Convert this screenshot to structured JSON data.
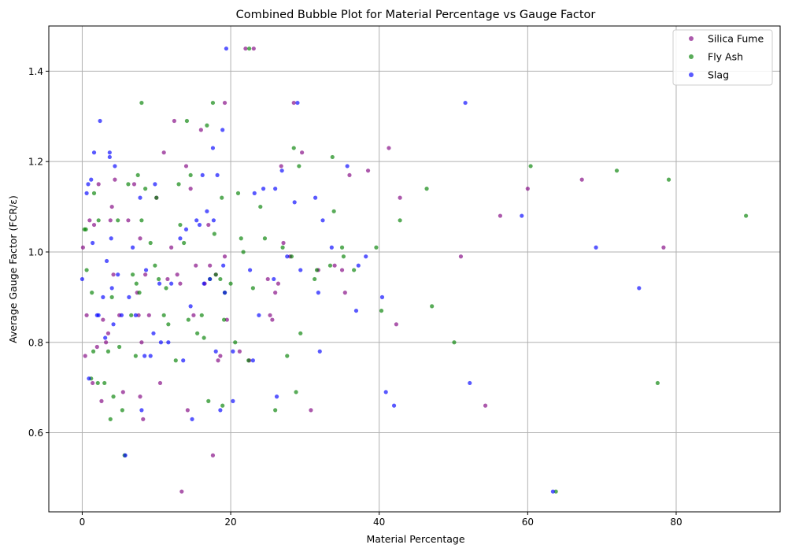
{
  "chart_data": {
    "type": "scatter",
    "title": "Combined Bubble Plot for Material Percentage vs Gauge Factor",
    "xlabel": "Material Percentage",
    "ylabel": "Average Gauge Factor (FCR/ε)",
    "xlim": [
      -4.5,
      94
    ],
    "ylim": [
      0.425,
      1.5
    ],
    "xticks": [
      0,
      20,
      40,
      60,
      80
    ],
    "yticks": [
      0.6,
      0.8,
      1.0,
      1.2,
      1.4
    ],
    "xtick_labels": [
      "0",
      "20",
      "40",
      "60",
      "80"
    ],
    "ytick_labels": [
      "0.6",
      "0.8",
      "1.0",
      "1.2",
      "1.4"
    ],
    "grid": true,
    "legend_position": "top-right",
    "series": [
      {
        "name": "Silica Fume",
        "color": "#800080",
        "points": [
          [
            0.1,
            1.01
          ],
          [
            0.4,
            0.77
          ],
          [
            0.6,
            0.86
          ],
          [
            1.0,
            1.07
          ],
          [
            1.4,
            0.71
          ],
          [
            1.6,
            1.06
          ],
          [
            2.0,
            0.79
          ],
          [
            2.2,
            1.15
          ],
          [
            2.6,
            0.67
          ],
          [
            2.8,
            0.85
          ],
          [
            3.2,
            0.8
          ],
          [
            3.5,
            0.82
          ],
          [
            3.8,
            1.07
          ],
          [
            4.0,
            1.1
          ],
          [
            4.2,
            0.95
          ],
          [
            4.4,
            1.16
          ],
          [
            5.0,
            0.86
          ],
          [
            5.5,
            0.69
          ],
          [
            6.2,
            1.07
          ],
          [
            7.0,
            1.15
          ],
          [
            7.4,
            0.91
          ],
          [
            7.6,
            0.86
          ],
          [
            7.8,
            1.03
          ],
          [
            7.8,
            0.68
          ],
          [
            8.0,
            0.8
          ],
          [
            8.2,
            0.63
          ],
          [
            8.5,
            0.95
          ],
          [
            9.0,
            0.86
          ],
          [
            10.0,
            1.12
          ],
          [
            10.5,
            0.71
          ],
          [
            11.0,
            1.22
          ],
          [
            11.5,
            0.94
          ],
          [
            12.0,
            1.01
          ],
          [
            12.4,
            1.29
          ],
          [
            12.8,
            0.95
          ],
          [
            13.2,
            0.93
          ],
          [
            13.4,
            0.47
          ],
          [
            14.0,
            1.19
          ],
          [
            14.2,
            0.65
          ],
          [
            14.6,
            1.14
          ],
          [
            15.0,
            0.86
          ],
          [
            15.3,
            0.97
          ],
          [
            16.0,
            1.27
          ],
          [
            16.5,
            0.93
          ],
          [
            17.0,
            1.06
          ],
          [
            17.2,
            0.97
          ],
          [
            17.6,
            0.55
          ],
          [
            18.0,
            0.95
          ],
          [
            18.3,
            0.76
          ],
          [
            18.6,
            0.77
          ],
          [
            19.2,
            0.99
          ],
          [
            19.2,
            1.33
          ],
          [
            19.5,
            0.85
          ],
          [
            21.2,
            0.78
          ],
          [
            22.0,
            1.45
          ],
          [
            22.5,
            0.76
          ],
          [
            23.1,
            1.45
          ],
          [
            25.0,
            0.94
          ],
          [
            25.3,
            0.86
          ],
          [
            25.6,
            0.85
          ],
          [
            26.0,
            0.91
          ],
          [
            26.4,
            0.93
          ],
          [
            26.8,
            1.19
          ],
          [
            27.1,
            1.02
          ],
          [
            28.0,
            0.99
          ],
          [
            28.5,
            1.33
          ],
          [
            29.6,
            1.22
          ],
          [
            30.8,
            0.65
          ],
          [
            31.8,
            0.96
          ],
          [
            34.0,
            0.97
          ],
          [
            35.0,
            0.96
          ],
          [
            35.4,
            0.91
          ],
          [
            36.0,
            1.17
          ],
          [
            38.5,
            1.18
          ],
          [
            41.3,
            1.23
          ],
          [
            42.3,
            0.84
          ],
          [
            42.8,
            1.12
          ],
          [
            51.0,
            0.99
          ],
          [
            54.3,
            0.66
          ],
          [
            56.3,
            1.08
          ],
          [
            60.0,
            1.14
          ],
          [
            67.3,
            1.16
          ],
          [
            78.3,
            1.01
          ]
        ]
      },
      {
        "name": "Fly Ash",
        "color": "#008000",
        "points": [
          [
            0.3,
            1.05
          ],
          [
            0.5,
            1.05
          ],
          [
            0.6,
            0.96
          ],
          [
            1.2,
            0.72
          ],
          [
            1.3,
            0.91
          ],
          [
            1.5,
            0.78
          ],
          [
            1.6,
            1.13
          ],
          [
            2.1,
            0.71
          ],
          [
            2.2,
            1.07
          ],
          [
            3.0,
            0.71
          ],
          [
            3.5,
            0.78
          ],
          [
            3.8,
            0.63
          ],
          [
            4.0,
            0.9
          ],
          [
            4.2,
            0.68
          ],
          [
            4.8,
            1.07
          ],
          [
            5.0,
            0.79
          ],
          [
            5.4,
            0.65
          ],
          [
            5.7,
            0.55
          ],
          [
            6.2,
            1.15
          ],
          [
            6.6,
            0.86
          ],
          [
            6.8,
            0.95
          ],
          [
            7.2,
            0.77
          ],
          [
            7.3,
            0.93
          ],
          [
            7.5,
            1.17
          ],
          [
            7.7,
            0.91
          ],
          [
            8.0,
            1.33
          ],
          [
            8.0,
            1.07
          ],
          [
            8.5,
            1.14
          ],
          [
            9.2,
            1.02
          ],
          [
            9.8,
            0.97
          ],
          [
            10.0,
            1.12
          ],
          [
            10.3,
            0.94
          ],
          [
            11.0,
            0.86
          ],
          [
            11.3,
            0.92
          ],
          [
            11.6,
            0.84
          ],
          [
            12.6,
            0.76
          ],
          [
            13.0,
            1.15
          ],
          [
            13.2,
            1.06
          ],
          [
            13.7,
            1.02
          ],
          [
            14.1,
            1.29
          ],
          [
            14.3,
            0.85
          ],
          [
            14.6,
            1.17
          ],
          [
            15.5,
            0.82
          ],
          [
            16.1,
            0.86
          ],
          [
            16.4,
            0.81
          ],
          [
            16.8,
            1.28
          ],
          [
            17.0,
            0.67
          ],
          [
            17.2,
            0.94
          ],
          [
            17.6,
            1.33
          ],
          [
            17.8,
            1.04
          ],
          [
            18.0,
            0.95
          ],
          [
            18.6,
            0.94
          ],
          [
            18.8,
            1.12
          ],
          [
            18.9,
            0.66
          ],
          [
            19.1,
            0.85
          ],
          [
            19.2,
            0.91
          ],
          [
            20.0,
            0.93
          ],
          [
            20.6,
            0.8
          ],
          [
            21.0,
            1.13
          ],
          [
            21.4,
            1.03
          ],
          [
            21.7,
            1.0
          ],
          [
            22.4,
            0.76
          ],
          [
            22.5,
            1.45
          ],
          [
            23.0,
            0.92
          ],
          [
            24.0,
            1.1
          ],
          [
            24.6,
            1.03
          ],
          [
            26.0,
            0.65
          ],
          [
            27.0,
            1.01
          ],
          [
            27.6,
            0.77
          ],
          [
            28.2,
            0.99
          ],
          [
            28.5,
            1.23
          ],
          [
            28.8,
            0.69
          ],
          [
            29.2,
            1.19
          ],
          [
            29.4,
            0.82
          ],
          [
            31.3,
            0.94
          ],
          [
            31.6,
            0.96
          ],
          [
            33.4,
            0.97
          ],
          [
            33.7,
            1.21
          ],
          [
            33.9,
            1.09
          ],
          [
            35.0,
            1.01
          ],
          [
            35.2,
            0.99
          ],
          [
            36.6,
            0.96
          ],
          [
            39.6,
            1.01
          ],
          [
            40.3,
            0.87
          ],
          [
            42.8,
            1.07
          ],
          [
            46.4,
            1.14
          ],
          [
            47.1,
            0.88
          ],
          [
            50.1,
            0.8
          ],
          [
            60.4,
            1.19
          ],
          [
            63.8,
            0.47
          ],
          [
            72.0,
            1.18
          ],
          [
            77.5,
            0.71
          ],
          [
            79.0,
            1.16
          ],
          [
            89.4,
            1.08
          ]
        ]
      },
      {
        "name": "Slag",
        "color": "#0000ff",
        "points": [
          [
            0.0,
            0.94
          ],
          [
            0.6,
            1.13
          ],
          [
            0.8,
            1.15
          ],
          [
            0.9,
            0.72
          ],
          [
            1.2,
            1.16
          ],
          [
            1.4,
            1.02
          ],
          [
            1.6,
            1.22
          ],
          [
            2.0,
            0.86
          ],
          [
            2.2,
            0.86
          ],
          [
            2.4,
            1.29
          ],
          [
            2.8,
            0.9
          ],
          [
            3.1,
            0.81
          ],
          [
            3.3,
            0.98
          ],
          [
            3.7,
            1.22
          ],
          [
            3.7,
            1.21
          ],
          [
            3.9,
            1.03
          ],
          [
            4.0,
            0.92
          ],
          [
            4.2,
            0.84
          ],
          [
            4.4,
            1.19
          ],
          [
            4.8,
            0.95
          ],
          [
            5.3,
            0.86
          ],
          [
            5.8,
            0.55
          ],
          [
            6.3,
            0.9
          ],
          [
            6.8,
            1.01
          ],
          [
            7.2,
            0.86
          ],
          [
            7.8,
            1.12
          ],
          [
            8.0,
            0.65
          ],
          [
            8.4,
            0.77
          ],
          [
            8.6,
            0.96
          ],
          [
            9.2,
            0.77
          ],
          [
            9.6,
            0.82
          ],
          [
            9.8,
            1.15
          ],
          [
            10.4,
            0.93
          ],
          [
            10.6,
            0.8
          ],
          [
            11.6,
            0.8
          ],
          [
            12.0,
            0.93
          ],
          [
            13.2,
            1.03
          ],
          [
            13.6,
            0.76
          ],
          [
            14.0,
            1.05
          ],
          [
            14.6,
            0.88
          ],
          [
            14.8,
            0.63
          ],
          [
            15.4,
            1.07
          ],
          [
            15.8,
            1.06
          ],
          [
            16.2,
            1.17
          ],
          [
            16.4,
            0.93
          ],
          [
            16.8,
            1.09
          ],
          [
            17.2,
            0.94
          ],
          [
            17.6,
            1.23
          ],
          [
            17.7,
            1.07
          ],
          [
            18.0,
            0.78
          ],
          [
            18.2,
            1.17
          ],
          [
            18.6,
            0.65
          ],
          [
            18.9,
            1.27
          ],
          [
            19.0,
            0.97
          ],
          [
            19.2,
            0.91
          ],
          [
            19.4,
            1.45
          ],
          [
            20.3,
            0.67
          ],
          [
            20.3,
            0.78
          ],
          [
            22.6,
            0.96
          ],
          [
            23.0,
            0.76
          ],
          [
            23.2,
            1.13
          ],
          [
            23.8,
            0.86
          ],
          [
            24.4,
            1.14
          ],
          [
            25.8,
            0.94
          ],
          [
            26.0,
            1.14
          ],
          [
            26.2,
            0.68
          ],
          [
            26.9,
            1.18
          ],
          [
            27.6,
            0.99
          ],
          [
            28.6,
            1.11
          ],
          [
            29.0,
            1.33
          ],
          [
            29.4,
            0.96
          ],
          [
            31.4,
            1.12
          ],
          [
            31.8,
            0.91
          ],
          [
            32.0,
            0.78
          ],
          [
            32.4,
            1.07
          ],
          [
            33.6,
            1.01
          ],
          [
            35.7,
            1.19
          ],
          [
            36.9,
            0.87
          ],
          [
            37.2,
            0.97
          ],
          [
            38.2,
            0.99
          ],
          [
            40.4,
            0.9
          ],
          [
            40.9,
            0.69
          ],
          [
            42.0,
            0.66
          ],
          [
            51.6,
            1.33
          ],
          [
            52.2,
            0.71
          ],
          [
            59.2,
            1.08
          ],
          [
            63.4,
            0.47
          ],
          [
            69.2,
            1.01
          ],
          [
            75.0,
            0.92
          ]
        ]
      }
    ]
  }
}
